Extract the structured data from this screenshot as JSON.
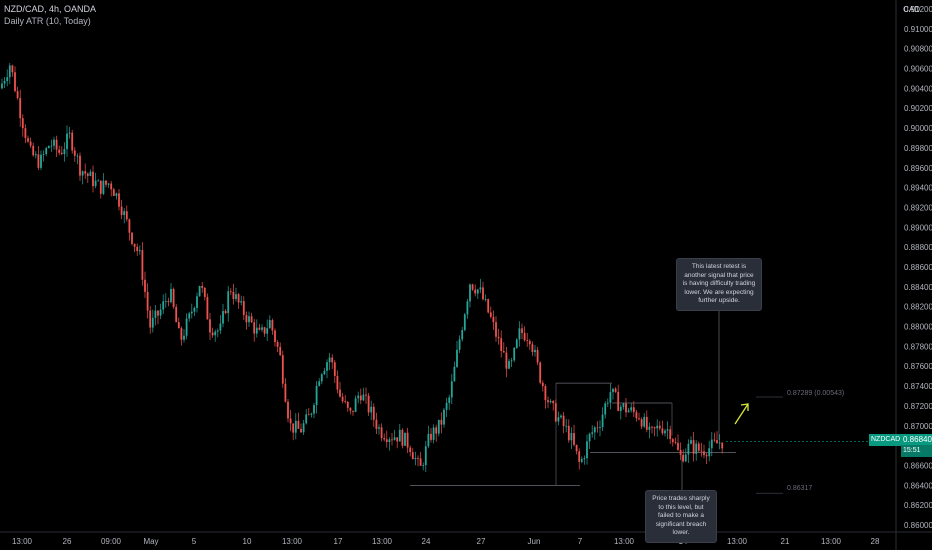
{
  "header": {
    "symbol_line": "NZD/CAD, 4h, OANDA",
    "indicator_line": "Daily ATR (10, Today)",
    "currency": "CAD"
  },
  "annotations": {
    "note_top": "This latest retest is another signal that price is having difficulty trading lower. We are expecting further upside.",
    "note_bottom": "Price trades sharply to this level, but failed to make a significant breach lower.",
    "level_upper": "0.87289 (0.00543)",
    "level_lower": "0.86317"
  },
  "price_tags": {
    "symbol": "NZDCAD",
    "price": "0.86840",
    "countdown": "15:51"
  },
  "colors": {
    "background": "#000000",
    "up": "#26a69a",
    "down": "#ef5350",
    "level_line": "#6a6d78",
    "arrow": "#d8e63a"
  },
  "chart_data": {
    "type": "candlestick",
    "title": "NZD/CAD, 4h, OANDA",
    "ylabel": "CAD",
    "ylim": [
      0.8595,
      0.9125
    ],
    "y_ticks": [
      "0.91200",
      "0.91000",
      "0.90800",
      "0.90600",
      "0.90400",
      "0.90200",
      "0.90000",
      "0.89800",
      "0.89600",
      "0.89400",
      "0.89200",
      "0.89000",
      "0.88800",
      "0.88600",
      "0.88400",
      "0.88200",
      "0.88000",
      "0.87800",
      "0.87600",
      "0.87400",
      "0.87200",
      "0.87000",
      "0.86800",
      "0.86600",
      "0.86400",
      "0.86200",
      "0.86000"
    ],
    "x_ticks": [
      "13:00",
      "26",
      "09:00",
      "May",
      "5",
      "10",
      "13:00",
      "17",
      "13:00",
      "24",
      "27",
      "Jun",
      "7",
      "13:00",
      "14",
      "13:00",
      "21",
      "13:00",
      "28"
    ],
    "approx_close_path": [
      [
        0,
        0.904
      ],
      [
        10,
        0.9065
      ],
      [
        20,
        0.9018
      ],
      [
        30,
        0.8975
      ],
      [
        40,
        0.8965
      ],
      [
        50,
        0.8985
      ],
      [
        60,
        0.8975
      ],
      [
        70,
        0.8992
      ],
      [
        80,
        0.896
      ],
      [
        90,
        0.895
      ],
      [
        100,
        0.894
      ],
      [
        110,
        0.8945
      ],
      [
        120,
        0.8925
      ],
      [
        130,
        0.8895
      ],
      [
        140,
        0.887
      ],
      [
        150,
        0.88
      ],
      [
        160,
        0.8815
      ],
      [
        170,
        0.8835
      ],
      [
        180,
        0.8785
      ],
      [
        190,
        0.881
      ],
      [
        200,
        0.8845
      ],
      [
        210,
        0.88
      ],
      [
        220,
        0.8795
      ],
      [
        230,
        0.884
      ],
      [
        240,
        0.882
      ],
      [
        250,
        0.8805
      ],
      [
        260,
        0.879
      ],
      [
        270,
        0.8805
      ],
      [
        280,
        0.877
      ],
      [
        290,
        0.87
      ],
      [
        300,
        0.8695
      ],
      [
        310,
        0.871
      ],
      [
        320,
        0.8755
      ],
      [
        330,
        0.877
      ],
      [
        340,
        0.873
      ],
      [
        350,
        0.871
      ],
      [
        360,
        0.8735
      ],
      [
        370,
        0.8715
      ],
      [
        380,
        0.8695
      ],
      [
        390,
        0.869
      ],
      [
        400,
        0.869
      ],
      [
        410,
        0.868
      ],
      [
        420,
        0.8655
      ],
      [
        430,
        0.869
      ],
      [
        440,
        0.87
      ],
      [
        450,
        0.873
      ],
      [
        460,
        0.879
      ],
      [
        470,
        0.8845
      ],
      [
        480,
        0.8835
      ],
      [
        490,
        0.881
      ],
      [
        500,
        0.878
      ],
      [
        510,
        0.8755
      ],
      [
        520,
        0.8795
      ],
      [
        530,
        0.879
      ],
      [
        540,
        0.875
      ],
      [
        550,
        0.872
      ],
      [
        560,
        0.8705
      ],
      [
        570,
        0.869
      ],
      [
        580,
        0.866
      ],
      [
        590,
        0.869
      ],
      [
        600,
        0.8705
      ],
      [
        610,
        0.8735
      ],
      [
        620,
        0.872
      ],
      [
        630,
        0.8715
      ],
      [
        640,
        0.871
      ],
      [
        650,
        0.869
      ],
      [
        660,
        0.87
      ],
      [
        670,
        0.8695
      ],
      [
        680,
        0.8668
      ],
      [
        690,
        0.868
      ],
      [
        700,
        0.8675
      ],
      [
        710,
        0.8678
      ],
      [
        720,
        0.8684
      ]
    ],
    "resistance_lines": [
      {
        "y": 0.8743,
        "label": ""
      },
      {
        "y": 0.8723,
        "label": ""
      },
      {
        "y": 0.8673,
        "label": ""
      },
      {
        "y": 0.864,
        "label": ""
      }
    ],
    "levels": [
      {
        "label": "0.87289 (0.00543)",
        "y": 0.8729
      },
      {
        "label": "0.86317",
        "y": 0.8632
      }
    ],
    "last_price": 0.8684
  }
}
